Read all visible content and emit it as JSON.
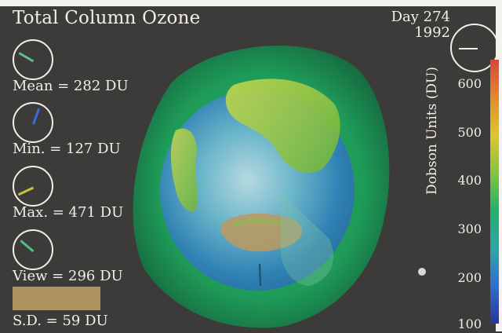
{
  "title": "Total Column Ozone",
  "date": {
    "day_label": "Day 274",
    "year": "1992"
  },
  "stats": [
    {
      "label": "Mean = 282 DU",
      "gauge_color": "#5bc48a",
      "gauge_angle_deg": 300
    },
    {
      "label": "Min. = 127 DU",
      "gauge_color": "#3a6be0",
      "gauge_angle_deg": 20
    },
    {
      "label": "Max. = 471 DU",
      "gauge_color": "#c9c33a",
      "gauge_angle_deg": 245
    },
    {
      "label": "View = 296 DU",
      "gauge_color": "#4fc17f",
      "gauge_angle_deg": 310
    },
    {
      "label": "S.D. = 59 DU",
      "swatch_color": "#b59b63"
    }
  ],
  "colorbar": {
    "title": "Dobson Units (DU)",
    "ticks": [
      "600",
      "500",
      "400",
      "300",
      "200",
      "100"
    ],
    "colors": [
      "#d8453a",
      "#e28a2d",
      "#e0c62c",
      "#84c63b",
      "#22b06a",
      "#2fa6a8",
      "#2e6fd0",
      "#27379a"
    ]
  }
}
